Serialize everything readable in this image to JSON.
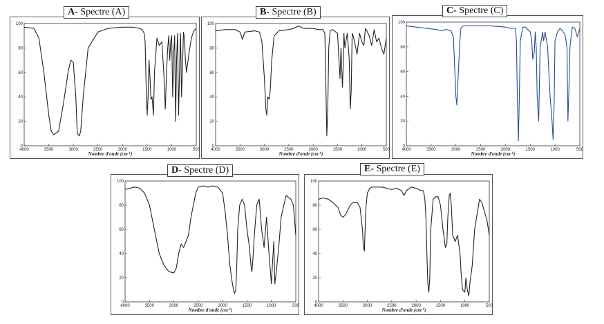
{
  "charts": [
    {
      "id": "A",
      "title_letter": "A-",
      "title_text": "Spectre (A)",
      "chart_data": {
        "type": "line",
        "xlabel": "Nombre d'onde (cm",
        "xlabel_sup": "-1",
        "xlabel_end": ")",
        "xlim": [
          4000,
          500
        ],
        "ylim": [
          0,
          100
        ],
        "xticks": [
          4000,
          3500,
          3000,
          2500,
          2000,
          1500,
          1000,
          500
        ],
        "yticks": [
          0,
          20,
          40,
          60,
          80,
          100
        ],
        "color": "#222222",
        "x": [
          4000,
          3800,
          3700,
          3600,
          3500,
          3450,
          3400,
          3300,
          3200,
          3100,
          3050,
          3000,
          2950,
          2920,
          2880,
          2850,
          2800,
          2700,
          2500,
          2300,
          2000,
          1800,
          1650,
          1600,
          1560,
          1540,
          1520,
          1500,
          1480,
          1460,
          1440,
          1420,
          1400,
          1380,
          1370,
          1350,
          1300,
          1250,
          1200,
          1160,
          1130,
          1100,
          1080,
          1060,
          1040,
          1020,
          1000,
          980,
          960,
          940,
          920,
          900,
          880,
          860,
          840,
          820,
          800,
          780,
          760,
          740,
          720,
          700,
          650,
          600,
          550,
          500
        ],
        "y": [
          97,
          96,
          88,
          60,
          25,
          12,
          9,
          12,
          35,
          62,
          70,
          68,
          40,
          10,
          8,
          12,
          40,
          80,
          93,
          96,
          97,
          97,
          96,
          95,
          92,
          85,
          50,
          25,
          40,
          70,
          55,
          38,
          40,
          30,
          25,
          60,
          88,
          82,
          85,
          60,
          30,
          65,
          80,
          90,
          70,
          85,
          90,
          40,
          75,
          90,
          20,
          70,
          92,
          25,
          60,
          92,
          40,
          65,
          93,
          88,
          70,
          60,
          75,
          88,
          94,
          96
        ]
      }
    },
    {
      "id": "B",
      "title_letter": "B-",
      "title_text": "Spectre (B)",
      "chart_data": {
        "type": "line",
        "xlabel": "Nombre d'onde (cm",
        "xlabel_sup": "-1",
        "xlabel_end": ")",
        "xlim": [
          4000,
          500
        ],
        "ylim": [
          0,
          100
        ],
        "xticks": [
          4000,
          3500,
          3000,
          2500,
          2000,
          1500,
          1000,
          500
        ],
        "yticks": [
          0,
          20,
          40,
          60,
          80,
          100
        ],
        "color": "#222222",
        "x": [
          4000,
          3800,
          3600,
          3500,
          3450,
          3400,
          3200,
          3100,
          3050,
          3000,
          2970,
          2950,
          2930,
          2900,
          2880,
          2850,
          2800,
          2700,
          2500,
          2400,
          2300,
          2200,
          2000,
          1900,
          1800,
          1760,
          1740,
          1720,
          1700,
          1680,
          1650,
          1600,
          1500,
          1470,
          1450,
          1430,
          1400,
          1380,
          1370,
          1350,
          1300,
          1260,
          1240,
          1220,
          1200,
          1180,
          1150,
          1100,
          1050,
          1000,
          960,
          930,
          900,
          850,
          800,
          750,
          700,
          650,
          600,
          550,
          500
        ],
        "y": [
          94,
          95,
          95,
          93,
          87,
          93,
          94,
          93,
          85,
          55,
          30,
          25,
          40,
          38,
          45,
          70,
          90,
          94,
          95,
          96,
          98,
          96,
          96,
          95,
          95,
          92,
          50,
          8,
          30,
          80,
          94,
          95,
          92,
          70,
          55,
          80,
          48,
          70,
          92,
          80,
          92,
          70,
          30,
          45,
          92,
          90,
          85,
          75,
          92,
          85,
          82,
          96,
          94,
          90,
          82,
          95,
          85,
          88,
          80,
          75,
          88
        ]
      }
    },
    {
      "id": "C",
      "title_letter": "C-",
      "title_text": "Spectre (C)",
      "chart_data": {
        "type": "line",
        "xlabel": "Nombre d'onde (cm",
        "xlabel_sup": "-1",
        "xlabel_end": ")",
        "xlim": [
          4000,
          500
        ],
        "ylim": [
          0,
          100
        ],
        "xticks": [
          4000,
          3500,
          3000,
          2500,
          2000,
          1500,
          1000,
          500
        ],
        "yticks": [
          0,
          20,
          40,
          60,
          80,
          100
        ],
        "color": "#1f4e8c",
        "x": [
          4000,
          3800,
          3600,
          3400,
          3300,
          3200,
          3100,
          3050,
          3000,
          2980,
          2950,
          2920,
          2900,
          2850,
          2800,
          2700,
          2500,
          2300,
          2000,
          1900,
          1800,
          1780,
          1760,
          1740,
          1720,
          1700,
          1650,
          1600,
          1500,
          1470,
          1450,
          1420,
          1400,
          1380,
          1360,
          1330,
          1300,
          1250,
          1230,
          1200,
          1150,
          1100,
          1060,
          1040,
          1020,
          1000,
          950,
          900,
          850,
          800,
          760,
          740,
          720,
          700,
          650,
          600,
          550,
          500
        ],
        "y": [
          97,
          96,
          95,
          94,
          93,
          94,
          93,
          88,
          40,
          33,
          60,
          85,
          95,
          97,
          97,
          97,
          97,
          97,
          96,
          95,
          95,
          85,
          40,
          4,
          40,
          85,
          96,
          96,
          92,
          85,
          70,
          75,
          92,
          80,
          40,
          20,
          80,
          92,
          85,
          92,
          80,
          40,
          20,
          5,
          30,
          85,
          92,
          95,
          93,
          90,
          80,
          20,
          45,
          80,
          96,
          95,
          88,
          95
        ]
      }
    },
    {
      "id": "D",
      "title_letter": "D-",
      "title_text": "Spectre (D)",
      "chart_data": {
        "type": "line",
        "xlabel": "Nombre d'onde (cm",
        "xlabel_sup": "-1",
        "xlabel_end": ")",
        "xlim": [
          4000,
          500
        ],
        "ylim": [
          0,
          100
        ],
        "xticks": [
          4000,
          3500,
          3000,
          2500,
          2000,
          1500,
          1000,
          500
        ],
        "yticks": [
          0,
          20,
          40,
          60,
          80,
          100
        ],
        "color": "#222222",
        "x": [
          4000,
          3900,
          3800,
          3700,
          3600,
          3500,
          3400,
          3300,
          3200,
          3100,
          3000,
          2950,
          2900,
          2850,
          2800,
          2750,
          2700,
          2650,
          2600,
          2550,
          2500,
          2400,
          2300,
          2200,
          2100,
          2000,
          1950,
          1900,
          1850,
          1800,
          1760,
          1730,
          1710,
          1690,
          1650,
          1600,
          1550,
          1500,
          1450,
          1420,
          1400,
          1380,
          1350,
          1300,
          1250,
          1200,
          1150,
          1100,
          1050,
          1000,
          980,
          950,
          930,
          900,
          850,
          800,
          700,
          600,
          550,
          500
        ],
        "y": [
          93,
          94,
          95,
          94,
          90,
          80,
          60,
          40,
          30,
          25,
          24,
          28,
          40,
          48,
          45,
          50,
          55,
          70,
          80,
          90,
          95,
          96,
          95,
          96,
          95,
          90,
          75,
          55,
          30,
          15,
          7,
          10,
          30,
          60,
          80,
          85,
          80,
          60,
          45,
          30,
          25,
          35,
          55,
          80,
          85,
          60,
          45,
          70,
          40,
          15,
          30,
          50,
          15,
          25,
          45,
          70,
          88,
          85,
          80,
          55
        ]
      }
    },
    {
      "id": "E",
      "title_letter": "E-",
      "title_text": "Spectre (E)",
      "chart_data": {
        "type": "line",
        "xlabel": "Nombre d'onde (cm",
        "xlabel_sup": "-1",
        "xlabel_end": ")",
        "xlim": [
          4000,
          500
        ],
        "ylim": [
          0,
          100
        ],
        "xticks": [
          4000,
          3500,
          3000,
          2500,
          2000,
          1500,
          1000,
          500
        ],
        "yticks": [
          0,
          20,
          40,
          60,
          80,
          100
        ],
        "color": "#222222",
        "x": [
          4000,
          3900,
          3800,
          3700,
          3600,
          3550,
          3500,
          3450,
          3400,
          3350,
          3300,
          3200,
          3150,
          3100,
          3080,
          3060,
          3050,
          3030,
          3000,
          2950,
          2900,
          2800,
          2700,
          2600,
          2500,
          2400,
          2300,
          2250,
          2200,
          2100,
          2000,
          1950,
          1900,
          1850,
          1820,
          1800,
          1780,
          1760,
          1740,
          1720,
          1700,
          1650,
          1600,
          1550,
          1500,
          1450,
          1400,
          1370,
          1350,
          1320,
          1300,
          1280,
          1250,
          1200,
          1150,
          1100,
          1080,
          1050,
          1000,
          980,
          950,
          920,
          900,
          850,
          800,
          700,
          650,
          600,
          550,
          500
        ],
        "y": [
          85,
          86,
          85,
          82,
          78,
          72,
          70,
          72,
          76,
          80,
          82,
          82,
          78,
          60,
          45,
          42,
          55,
          78,
          90,
          94,
          95,
          95,
          95,
          94,
          93,
          94,
          92,
          88,
          92,
          95,
          94,
          93,
          92,
          92,
          85,
          70,
          40,
          15,
          8,
          20,
          60,
          85,
          87,
          87,
          80,
          60,
          45,
          48,
          70,
          88,
          90,
          80,
          55,
          50,
          55,
          40,
          25,
          10,
          8,
          20,
          10,
          5,
          15,
          30,
          60,
          85,
          82,
          75,
          68,
          55
        ]
      }
    }
  ]
}
